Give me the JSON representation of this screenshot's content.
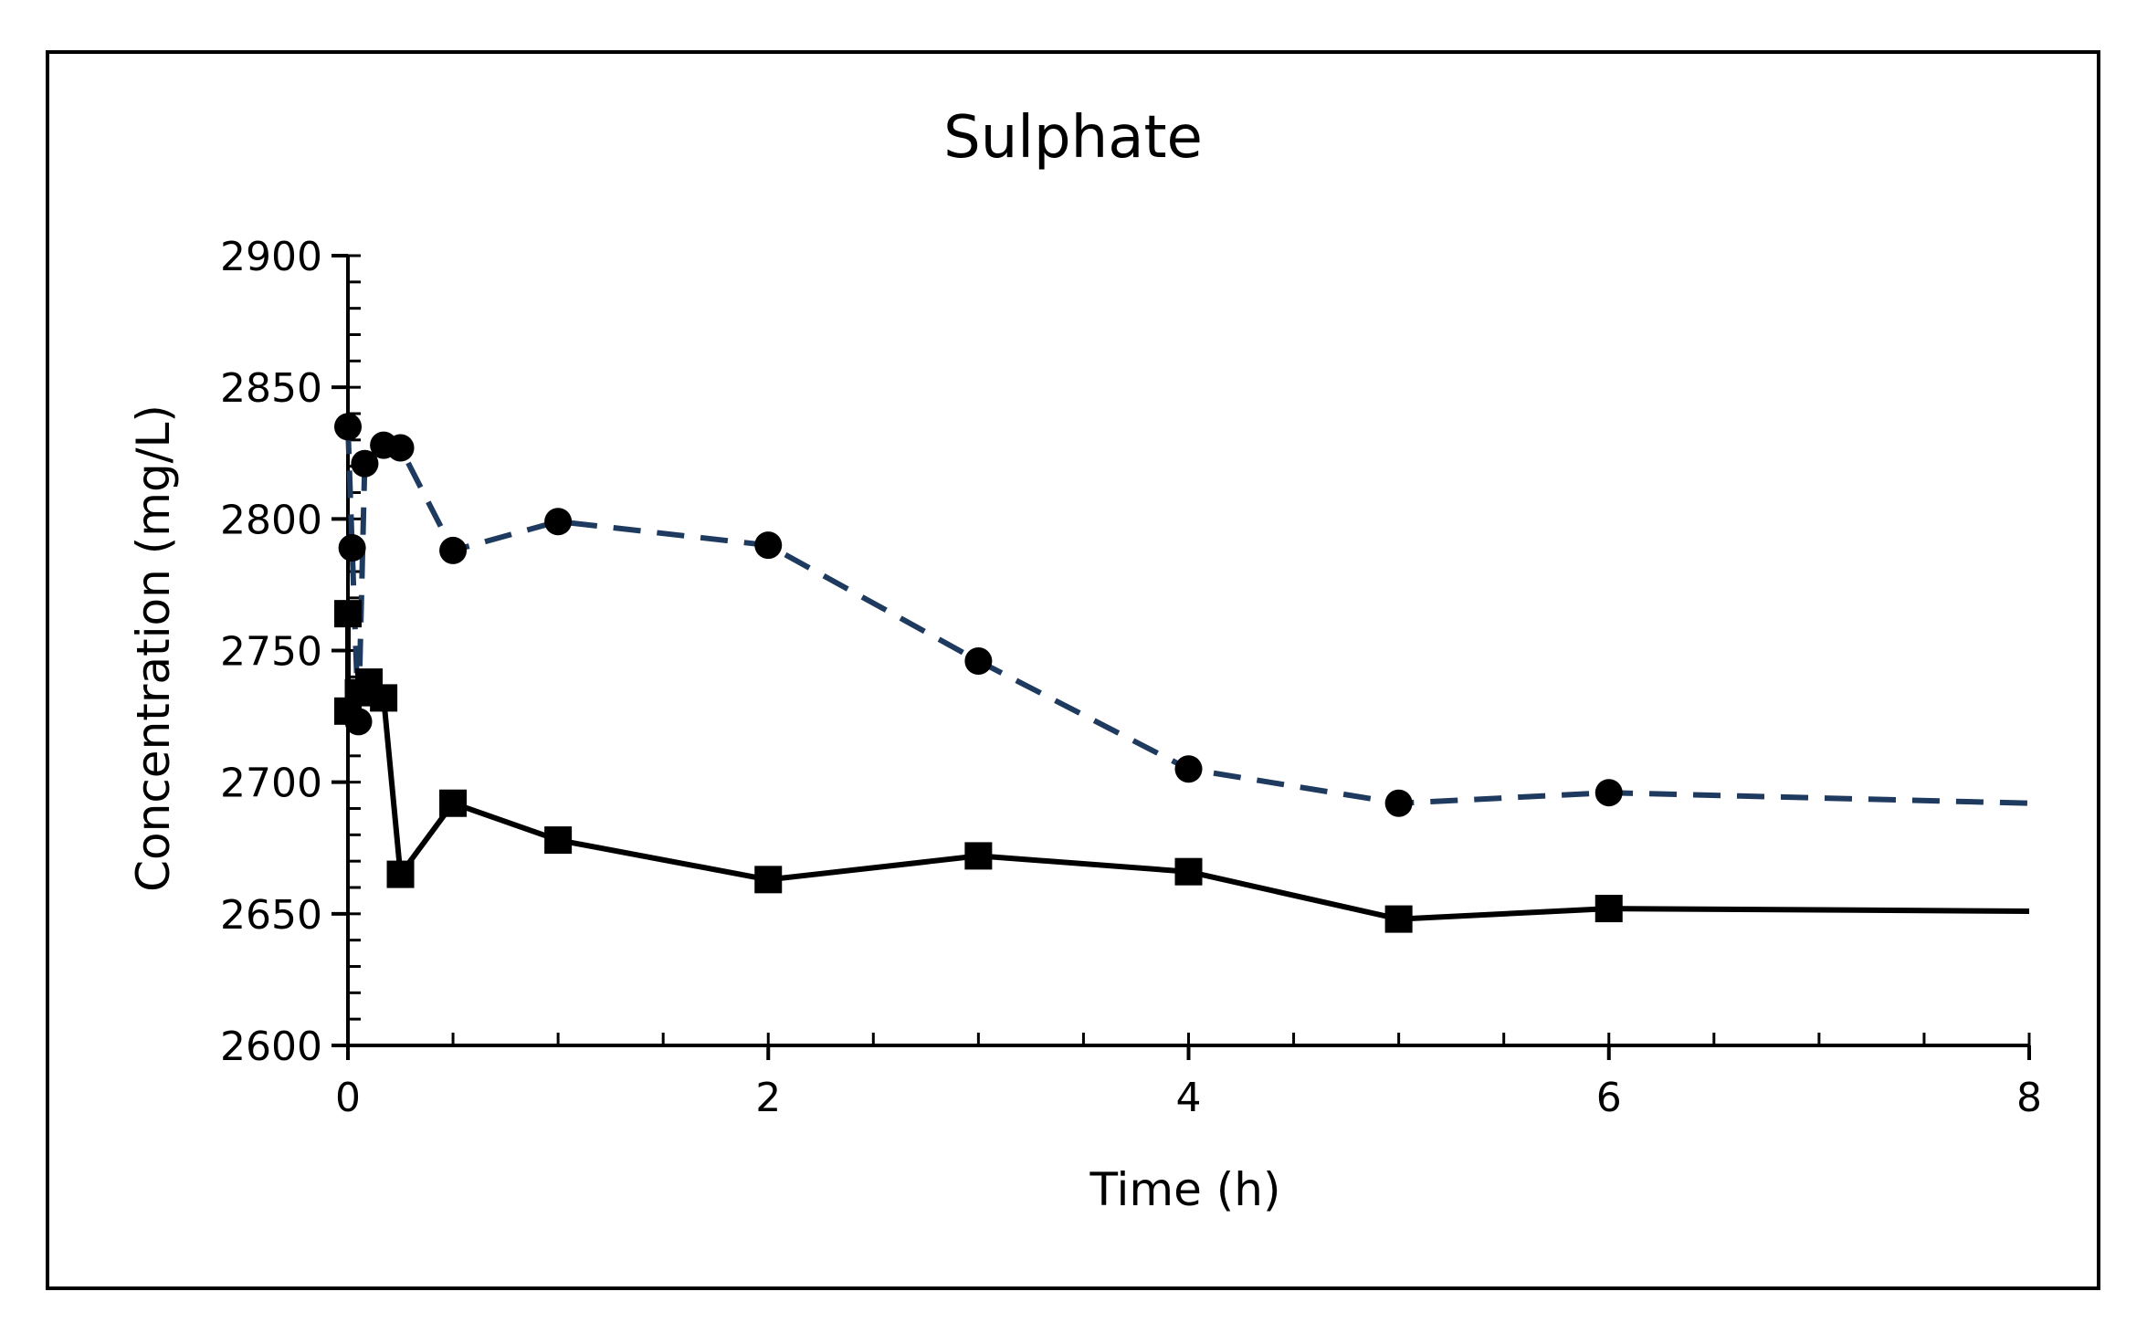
{
  "chart_data": {
    "type": "line",
    "title": "Sulphate",
    "xlabel": "Time (h)",
    "ylabel": "Concentration (mg/L)",
    "xlim": [
      0,
      8
    ],
    "ylim": [
      2600,
      2900
    ],
    "x_ticks": [
      0,
      2,
      4,
      6,
      8
    ],
    "y_ticks": [
      2600,
      2650,
      2700,
      2750,
      2800,
      2850,
      2900
    ],
    "x_minor_step": 0.5,
    "y_minor_step": 10,
    "grid": false,
    "legend": "none",
    "series": [
      {
        "name": "circles-dashed",
        "marker": "circle",
        "line_style": "dashed",
        "color": "#1f3a5f",
        "marker_color": "#000000",
        "points": [
          {
            "x": 0.0,
            "y": 2835
          },
          {
            "x": 0.02,
            "y": 2789
          },
          {
            "x": 0.05,
            "y": 2723
          },
          {
            "x": 0.08,
            "y": 2821
          },
          {
            "x": 0.17,
            "y": 2828
          },
          {
            "x": 0.25,
            "y": 2827
          },
          {
            "x": 0.5,
            "y": 2788
          },
          {
            "x": 1.0,
            "y": 2799
          },
          {
            "x": 2.0,
            "y": 2790
          },
          {
            "x": 3.0,
            "y": 2746
          },
          {
            "x": 4.0,
            "y": 2705
          },
          {
            "x": 5.0,
            "y": 2692
          },
          {
            "x": 6.0,
            "y": 2696
          }
        ],
        "line_end": {
          "x": 8.0,
          "y": 2692
        }
      },
      {
        "name": "squares-solid",
        "marker": "square",
        "line_style": "solid",
        "color": "#000000",
        "marker_color": "#000000",
        "points": [
          {
            "x": 0.0,
            "y": 2764
          },
          {
            "x": 0.0,
            "y": 2727
          },
          {
            "x": 0.05,
            "y": 2734
          },
          {
            "x": 0.1,
            "y": 2738
          },
          {
            "x": 0.17,
            "y": 2732
          },
          {
            "x": 0.25,
            "y": 2665
          },
          {
            "x": 0.5,
            "y": 2692
          },
          {
            "x": 1.0,
            "y": 2678
          },
          {
            "x": 2.0,
            "y": 2663
          },
          {
            "x": 3.0,
            "y": 2672
          },
          {
            "x": 4.0,
            "y": 2666
          },
          {
            "x": 5.0,
            "y": 2648
          },
          {
            "x": 6.0,
            "y": 2652
          }
        ],
        "line_end": {
          "x": 8.0,
          "y": 2651
        }
      }
    ]
  }
}
